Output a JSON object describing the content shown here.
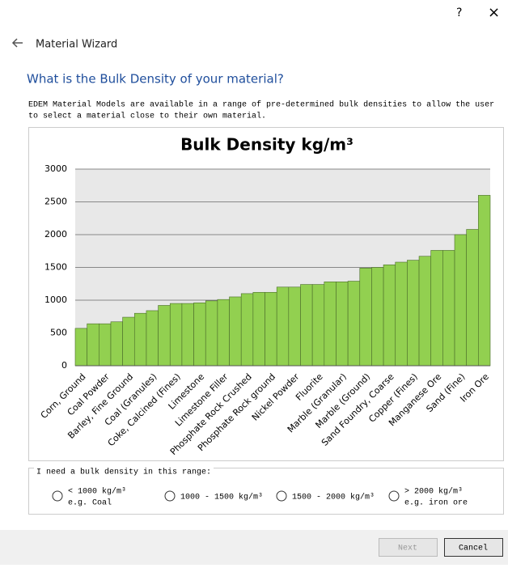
{
  "window": {
    "help": "?",
    "close": "×"
  },
  "header": {
    "title": "Material Wizard",
    "question": "What is the Bulk Density of your material?",
    "description": [
      "EDEM Material Models are available in a range of pre-determined bulk densities to allow the user",
      "to select a material close to their own material."
    ]
  },
  "chart_data": {
    "type": "bar",
    "title": "Bulk Density kg/m³",
    "categories": [
      "Corn, Ground",
      null,
      "Coal Powder",
      null,
      "Barley, Fine Ground",
      null,
      "Coal (Granules)",
      null,
      "Coke, Calcined (Fines)",
      null,
      "Limestone",
      null,
      "Limestone Filler",
      null,
      "Phosphate Rock Crushed",
      null,
      "Phosphate Rock ground",
      null,
      "Nickel Powder",
      null,
      "Fluorite",
      null,
      "Marble (Granular)",
      null,
      "Marble (Ground)",
      null,
      "Sand Foundry, Coarse",
      null,
      "Copper (Fines)",
      null,
      "Manganese Ore",
      null,
      "Sand (Fine)",
      null,
      "Iron Ore"
    ],
    "values": [
      570,
      640,
      640,
      670,
      740,
      800,
      840,
      920,
      950,
      950,
      960,
      990,
      1010,
      1050,
      1100,
      1120,
      1120,
      1200,
      1200,
      1240,
      1240,
      1280,
      1280,
      1290,
      1490,
      1500,
      1540,
      1580,
      1610,
      1670,
      1760,
      1760,
      2000,
      2080,
      2600
    ],
    "color": "#92d050",
    "ylim": [
      0,
      3000
    ],
    "yticks": [
      0,
      500,
      1000,
      1500,
      2000,
      2500,
      3000
    ],
    "grid": true
  },
  "range_group": {
    "label": "I need a bulk density in this range:",
    "options": [
      {
        "label": "< 1000 kg/m³",
        "example": "e.g. Coal"
      },
      {
        "label": "1000 - 1500 kg/m³"
      },
      {
        "label": "1500 - 2000 kg/m³"
      },
      {
        "label": "> 2000 kg/m³",
        "example": "e.g. iron ore"
      }
    ]
  },
  "buttons": {
    "next": "Next",
    "cancel": "Cancel"
  }
}
